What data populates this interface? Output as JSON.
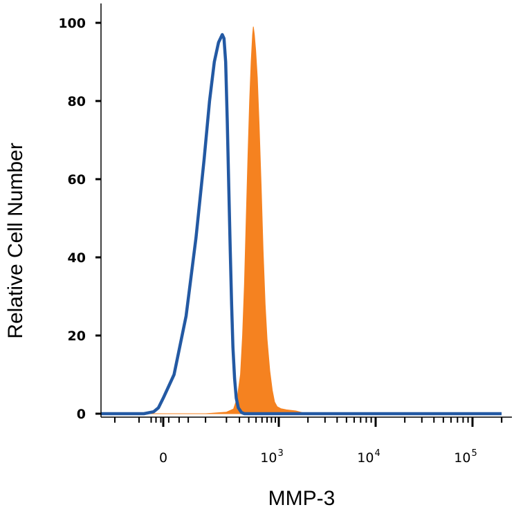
{
  "chart_data": {
    "type": "area",
    "xlabel": "MMP-3",
    "ylabel": "Relative Cell Number",
    "x_scale": "biexponential",
    "xlim": [
      -300,
      200000
    ],
    "ylim": [
      0,
      100
    ],
    "y_ticks": [
      0,
      20,
      40,
      60,
      80,
      100
    ],
    "y_tick_labels": [
      "0",
      "20",
      "40",
      "60",
      "80",
      "100"
    ],
    "x_ticks": [
      {
        "value": 0,
        "base": "0",
        "exp": ""
      },
      {
        "value": 1000,
        "base": "10",
        "exp": "3"
      },
      {
        "value": 10000,
        "base": "10",
        "exp": "4"
      },
      {
        "value": 100000,
        "base": "10",
        "exp": "5"
      }
    ],
    "grid": false,
    "legend": "none",
    "series": [
      {
        "style": "filled",
        "color": "#f58220",
        "points": [
          [
            -300,
            0
          ],
          [
            100,
            0
          ],
          [
            200,
            0.4
          ],
          [
            250,
            1.2
          ],
          [
            280,
            4
          ],
          [
            310,
            10
          ],
          [
            330,
            20
          ],
          [
            350,
            33
          ],
          [
            370,
            50
          ],
          [
            390,
            66
          ],
          [
            410,
            80
          ],
          [
            430,
            90
          ],
          [
            450,
            97
          ],
          [
            460,
            99
          ],
          [
            475,
            97
          ],
          [
            495,
            93
          ],
          [
            520,
            86
          ],
          [
            550,
            74
          ],
          [
            585,
            58
          ],
          [
            620,
            42
          ],
          [
            660,
            28
          ],
          [
            700,
            19
          ],
          [
            760,
            11
          ],
          [
            820,
            6
          ],
          [
            880,
            3
          ],
          [
            950,
            1.8
          ],
          [
            1050,
            1.3
          ],
          [
            1200,
            1
          ],
          [
            1500,
            0.7
          ],
          [
            1800,
            0.2
          ],
          [
            2100,
            0
          ],
          [
            200000,
            0
          ]
        ]
      },
      {
        "style": "line",
        "color": "#2359a3",
        "points": [
          [
            -300,
            0
          ],
          [
            -80,
            0
          ],
          [
            -40,
            0.5
          ],
          [
            -20,
            1.5
          ],
          [
            0,
            4
          ],
          [
            20,
            10
          ],
          [
            45,
            25
          ],
          [
            70,
            45
          ],
          [
            95,
            65
          ],
          [
            115,
            80
          ],
          [
            135,
            90
          ],
          [
            155,
            95
          ],
          [
            175,
            97
          ],
          [
            185,
            96
          ],
          [
            195,
            90
          ],
          [
            205,
            75
          ],
          [
            215,
            58
          ],
          [
            225,
            42
          ],
          [
            235,
            28
          ],
          [
            245,
            17
          ],
          [
            258,
            9
          ],
          [
            272,
            4
          ],
          [
            290,
            1.5
          ],
          [
            320,
            0.3
          ],
          [
            350,
            0
          ],
          [
            200000,
            0
          ]
        ]
      }
    ]
  }
}
